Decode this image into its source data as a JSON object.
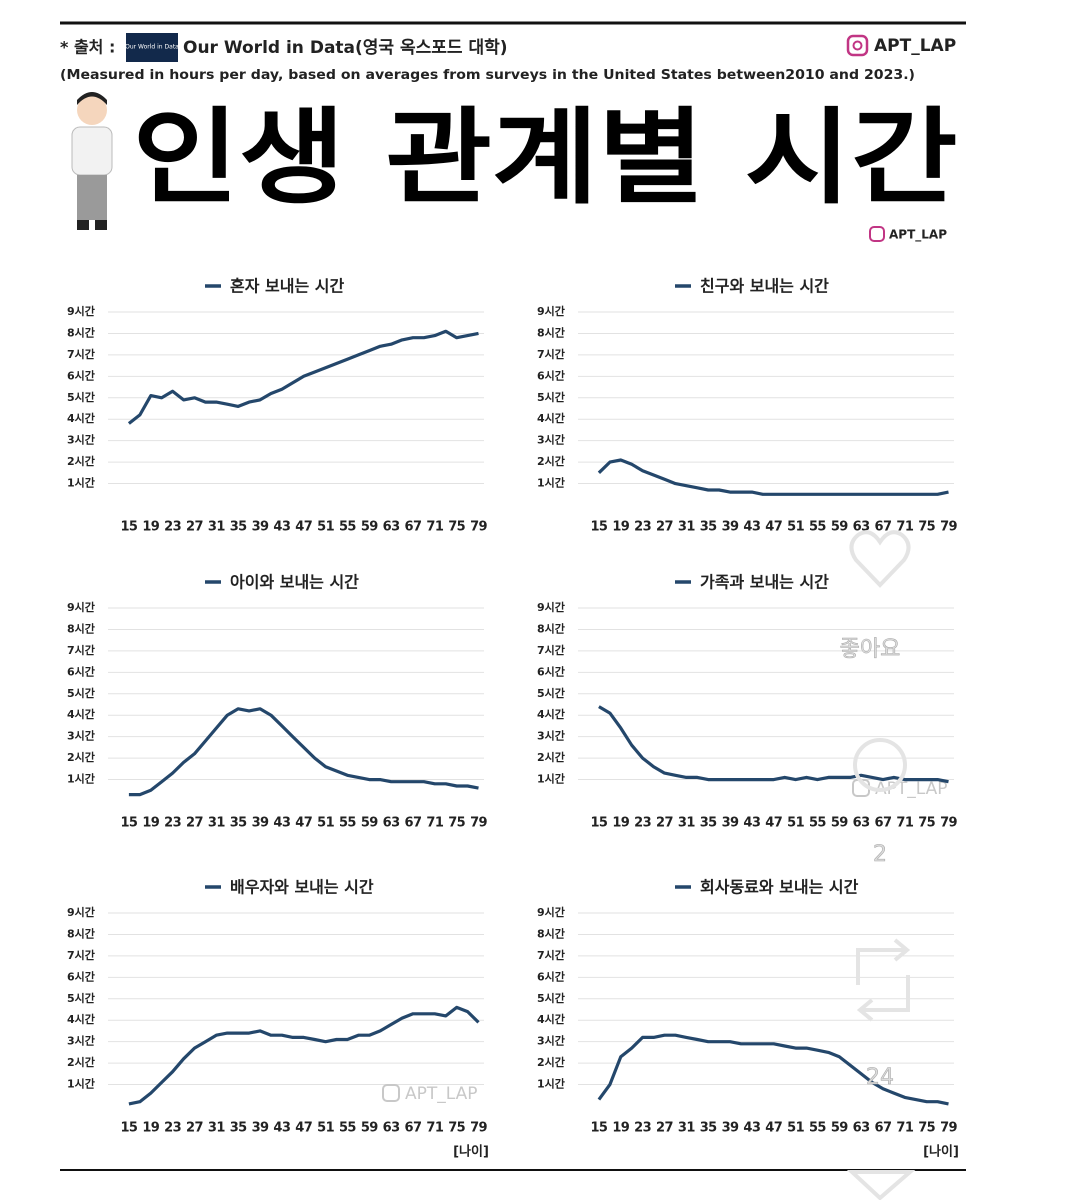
{
  "header": {
    "source_label": "* 출처 :",
    "logo": "Our World in Data",
    "source": "Our World in Data(영국 옥스포드 대학)",
    "handle": "APT_LAP",
    "note": "(Measured in hours per day, based on averages from surveys in the United States between2010 and 2023.)",
    "title": "인생 관계별 시간",
    "handle2": "APT_LAP"
  },
  "overlay": {
    "like": "좋아요",
    "comments": "2",
    "reposts": "24"
  },
  "chart_data": [
    {
      "type": "line",
      "grid": true,
      "xlim": [
        13,
        80
      ],
      "ylim": [
        0,
        9
      ],
      "xticks": [
        15,
        19,
        23,
        27,
        31,
        35,
        39,
        43,
        47,
        51,
        55,
        59,
        63,
        67,
        71,
        75,
        79
      ],
      "yticks": [
        {
          "value": 1,
          "label": "1시간"
        },
        {
          "value": 2,
          "label": "2시간"
        },
        {
          "value": 3,
          "label": "3시간"
        },
        {
          "value": 4,
          "label": "4시간"
        },
        {
          "value": 5,
          "label": "5시간"
        },
        {
          "value": 6,
          "label": "6시간"
        },
        {
          "value": 7,
          "label": "7시간"
        },
        {
          "value": 8,
          "label": "8시간"
        },
        {
          "value": 9,
          "label": "9시간"
        }
      ],
      "x": [
        15,
        17,
        19,
        21,
        23,
        25,
        27,
        29,
        31,
        33,
        35,
        37,
        39,
        41,
        43,
        45,
        47,
        49,
        51,
        53,
        55,
        57,
        59,
        61,
        63,
        65,
        67,
        69,
        71,
        73,
        75,
        77,
        79
      ],
      "series": [
        {
          "name": "혼자 보내는 시간",
          "color": "#24476b",
          "values": [
            3.8,
            4.2,
            5.1,
            5.0,
            5.3,
            4.9,
            5.0,
            4.8,
            4.8,
            4.7,
            4.6,
            4.8,
            4.9,
            5.2,
            5.4,
            5.7,
            6.0,
            6.2,
            6.4,
            6.6,
            6.8,
            7.0,
            7.2,
            7.4,
            7.5,
            7.7,
            7.8,
            7.8,
            7.9,
            8.1,
            7.8,
            7.9,
            8.0
          ]
        }
      ]
    },
    {
      "type": "line",
      "grid": true,
      "xlim": [
        13,
        80
      ],
      "ylim": [
        0,
        9
      ],
      "xticks": [
        15,
        19,
        23,
        27,
        31,
        35,
        39,
        43,
        47,
        51,
        55,
        59,
        63,
        67,
        71,
        75,
        79
      ],
      "yticks": [
        {
          "value": 1,
          "label": "1시간"
        },
        {
          "value": 2,
          "label": "2시간"
        },
        {
          "value": 3,
          "label": "3시간"
        },
        {
          "value": 4,
          "label": "4시간"
        },
        {
          "value": 5,
          "label": "5시간"
        },
        {
          "value": 6,
          "label": "6시간"
        },
        {
          "value": 7,
          "label": "7시간"
        },
        {
          "value": 8,
          "label": "8시간"
        },
        {
          "value": 9,
          "label": "9시간"
        }
      ],
      "x": [
        15,
        17,
        19,
        21,
        23,
        25,
        27,
        29,
        31,
        33,
        35,
        37,
        39,
        41,
        43,
        45,
        47,
        49,
        51,
        53,
        55,
        57,
        59,
        61,
        63,
        65,
        67,
        69,
        71,
        73,
        75,
        77,
        79
      ],
      "series": [
        {
          "name": "친구와 보내는 시간",
          "color": "#24476b",
          "values": [
            1.5,
            2.0,
            2.1,
            1.9,
            1.6,
            1.4,
            1.2,
            1.0,
            0.9,
            0.8,
            0.7,
            0.7,
            0.6,
            0.6,
            0.6,
            0.5,
            0.5,
            0.5,
            0.5,
            0.5,
            0.5,
            0.5,
            0.5,
            0.5,
            0.5,
            0.5,
            0.5,
            0.5,
            0.5,
            0.5,
            0.5,
            0.5,
            0.6
          ]
        }
      ]
    },
    {
      "type": "line",
      "grid": true,
      "xlim": [
        13,
        80
      ],
      "ylim": [
        0,
        9
      ],
      "xticks": [
        15,
        19,
        23,
        27,
        31,
        35,
        39,
        43,
        47,
        51,
        55,
        59,
        63,
        67,
        71,
        75,
        79
      ],
      "yticks": [
        {
          "value": 1,
          "label": "1시간"
        },
        {
          "value": 2,
          "label": "2시간"
        },
        {
          "value": 3,
          "label": "3시간"
        },
        {
          "value": 4,
          "label": "4시간"
        },
        {
          "value": 5,
          "label": "5시간"
        },
        {
          "value": 6,
          "label": "6시간"
        },
        {
          "value": 7,
          "label": "7시간"
        },
        {
          "value": 8,
          "label": "8시간"
        },
        {
          "value": 9,
          "label": "9시간"
        }
      ],
      "x": [
        15,
        17,
        19,
        21,
        23,
        25,
        27,
        29,
        31,
        33,
        35,
        37,
        39,
        41,
        43,
        45,
        47,
        49,
        51,
        53,
        55,
        57,
        59,
        61,
        63,
        65,
        67,
        69,
        71,
        73,
        75,
        77,
        79
      ],
      "series": [
        {
          "name": "아이와 보내는 시간",
          "color": "#24476b",
          "values": [
            0.3,
            0.3,
            0.5,
            0.9,
            1.3,
            1.8,
            2.2,
            2.8,
            3.4,
            4.0,
            4.3,
            4.2,
            4.3,
            4.0,
            3.5,
            3.0,
            2.5,
            2.0,
            1.6,
            1.4,
            1.2,
            1.1,
            1.0,
            1.0,
            0.9,
            0.9,
            0.9,
            0.9,
            0.8,
            0.8,
            0.7,
            0.7,
            0.6
          ]
        }
      ]
    },
    {
      "type": "line",
      "grid": true,
      "xlim": [
        13,
        80
      ],
      "ylim": [
        0,
        9
      ],
      "watermark": "APT_LAP",
      "xticks": [
        15,
        19,
        23,
        27,
        31,
        35,
        39,
        43,
        47,
        51,
        55,
        59,
        63,
        67,
        71,
        75,
        79
      ],
      "yticks": [
        {
          "value": 1,
          "label": "1시간"
        },
        {
          "value": 2,
          "label": "2시간"
        },
        {
          "value": 3,
          "label": "3시간"
        },
        {
          "value": 4,
          "label": "4시간"
        },
        {
          "value": 5,
          "label": "5시간"
        },
        {
          "value": 6,
          "label": "6시간"
        },
        {
          "value": 7,
          "label": "7시간"
        },
        {
          "value": 8,
          "label": "8시간"
        },
        {
          "value": 9,
          "label": "9시간"
        }
      ],
      "x": [
        15,
        17,
        19,
        21,
        23,
        25,
        27,
        29,
        31,
        33,
        35,
        37,
        39,
        41,
        43,
        45,
        47,
        49,
        51,
        53,
        55,
        57,
        59,
        61,
        63,
        65,
        67,
        69,
        71,
        73,
        75,
        77,
        79
      ],
      "series": [
        {
          "name": "가족과 보내는 시간",
          "color": "#24476b",
          "values": [
            4.4,
            4.1,
            3.4,
            2.6,
            2.0,
            1.6,
            1.3,
            1.2,
            1.1,
            1.1,
            1.0,
            1.0,
            1.0,
            1.0,
            1.0,
            1.0,
            1.0,
            1.1,
            1.0,
            1.1,
            1.0,
            1.1,
            1.1,
            1.1,
            1.2,
            1.1,
            1.0,
            1.1,
            1.0,
            1.0,
            1.0,
            1.0,
            0.9
          ]
        }
      ]
    },
    {
      "type": "line",
      "grid": true,
      "xlim": [
        13,
        80
      ],
      "ylim": [
        0,
        9
      ],
      "watermark": "APT_LAP",
      "xlabel": "[나이]",
      "xticks": [
        15,
        19,
        23,
        27,
        31,
        35,
        39,
        43,
        47,
        51,
        55,
        59,
        63,
        67,
        71,
        75,
        79
      ],
      "yticks": [
        {
          "value": 1,
          "label": "1시간"
        },
        {
          "value": 2,
          "label": "2시간"
        },
        {
          "value": 3,
          "label": "3시간"
        },
        {
          "value": 4,
          "label": "4시간"
        },
        {
          "value": 5,
          "label": "5시간"
        },
        {
          "value": 6,
          "label": "6시간"
        },
        {
          "value": 7,
          "label": "7시간"
        },
        {
          "value": 8,
          "label": "8시간"
        },
        {
          "value": 9,
          "label": "9시간"
        }
      ],
      "x": [
        15,
        17,
        19,
        21,
        23,
        25,
        27,
        29,
        31,
        33,
        35,
        37,
        39,
        41,
        43,
        45,
        47,
        49,
        51,
        53,
        55,
        57,
        59,
        61,
        63,
        65,
        67,
        69,
        71,
        73,
        75,
        77,
        79
      ],
      "series": [
        {
          "name": "배우자와 보내는 시간",
          "color": "#24476b",
          "values": [
            0.1,
            0.2,
            0.6,
            1.1,
            1.6,
            2.2,
            2.7,
            3.0,
            3.3,
            3.4,
            3.4,
            3.4,
            3.5,
            3.3,
            3.3,
            3.2,
            3.2,
            3.1,
            3.0,
            3.1,
            3.1,
            3.3,
            3.3,
            3.5,
            3.8,
            4.1,
            4.3,
            4.3,
            4.3,
            4.2,
            4.6,
            4.4,
            3.9
          ]
        }
      ]
    },
    {
      "type": "line",
      "grid": true,
      "xlim": [
        13,
        80
      ],
      "ylim": [
        0,
        9
      ],
      "xlabel": "[나이]",
      "xticks": [
        15,
        19,
        23,
        27,
        31,
        35,
        39,
        43,
        47,
        51,
        55,
        59,
        63,
        67,
        71,
        75,
        79
      ],
      "yticks": [
        {
          "value": 1,
          "label": "1시간"
        },
        {
          "value": 2,
          "label": "2시간"
        },
        {
          "value": 3,
          "label": "3시간"
        },
        {
          "value": 4,
          "label": "4시간"
        },
        {
          "value": 5,
          "label": "5시간"
        },
        {
          "value": 6,
          "label": "6시간"
        },
        {
          "value": 7,
          "label": "7시간"
        },
        {
          "value": 8,
          "label": "8시간"
        },
        {
          "value": 9,
          "label": "9시간"
        }
      ],
      "x": [
        15,
        17,
        19,
        21,
        23,
        25,
        27,
        29,
        31,
        33,
        35,
        37,
        39,
        41,
        43,
        45,
        47,
        49,
        51,
        53,
        55,
        57,
        59,
        61,
        63,
        65,
        67,
        69,
        71,
        73,
        75,
        77,
        79
      ],
      "series": [
        {
          "name": "회사동료와 보내는 시간",
          "color": "#24476b",
          "values": [
            0.3,
            1.0,
            2.3,
            2.7,
            3.2,
            3.2,
            3.3,
            3.3,
            3.2,
            3.1,
            3.0,
            3.0,
            3.0,
            2.9,
            2.9,
            2.9,
            2.9,
            2.8,
            2.7,
            2.7,
            2.6,
            2.5,
            2.3,
            1.9,
            1.5,
            1.1,
            0.8,
            0.6,
            0.4,
            0.3,
            0.2,
            0.2,
            0.1
          ]
        }
      ]
    }
  ]
}
